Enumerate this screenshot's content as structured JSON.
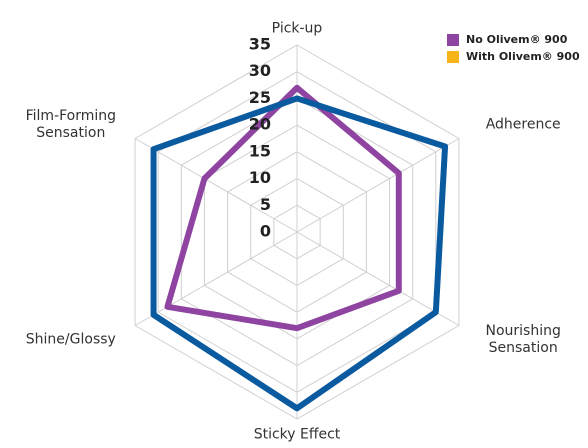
{
  "chart_data": {
    "type": "radar",
    "axes": [
      "Pick-up",
      "Adherence",
      "Nourishing\nSensation",
      "Sticky Effect",
      "Shine/Glossy",
      "Film-Forming\nSensation"
    ],
    "series": [
      {
        "name": "No Olivem® 900",
        "color": "#8e44a0",
        "legend_color": "#8e44a0",
        "values": [
          27,
          22,
          22,
          18,
          28,
          20
        ]
      },
      {
        "name": "With Olivem® 900",
        "color": "#0a5aa0",
        "legend_color": "#f7b416",
        "values": [
          25,
          32,
          30,
          33,
          31,
          31
        ]
      }
    ],
    "rlim": [
      0,
      35
    ],
    "rticks": [
      0,
      5,
      10,
      15,
      20,
      25,
      30,
      35
    ],
    "grid": true,
    "legend": "upper right"
  }
}
